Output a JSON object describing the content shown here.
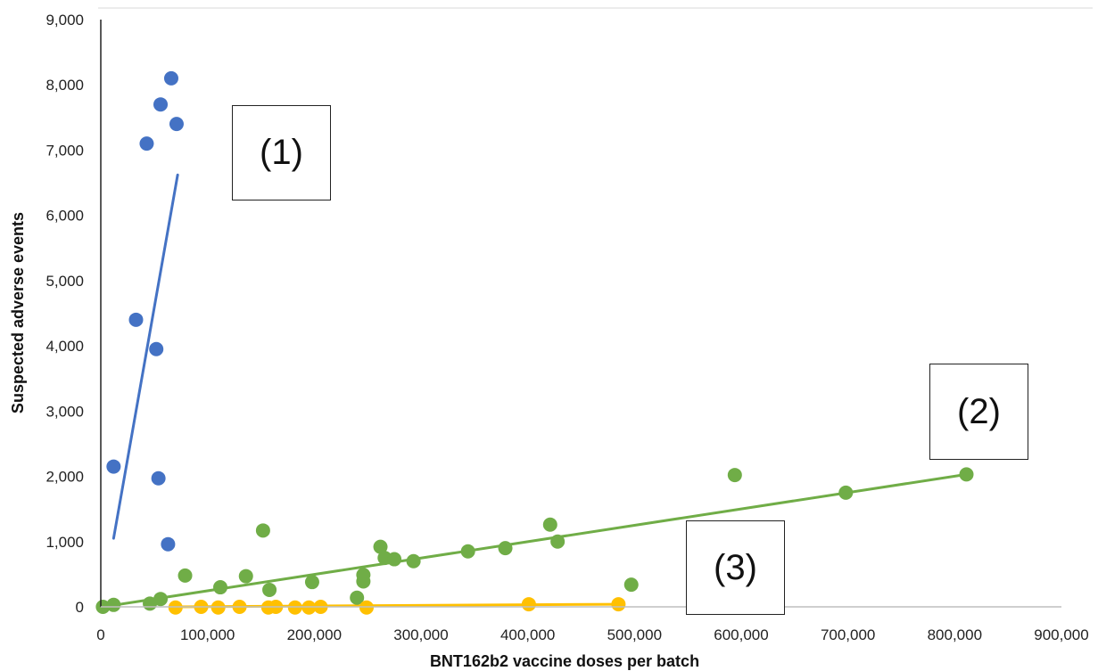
{
  "chart_data": {
    "type": "scatter",
    "title": "",
    "xlabel": "BNT162b2 vaccine doses per batch",
    "ylabel": "Suspected adverse events",
    "xlim": [
      0,
      900000
    ],
    "ylim": [
      0,
      9000
    ],
    "x_ticks": [
      "0",
      "100,000",
      "200,000",
      "300,000",
      "400,000",
      "500,000",
      "600,000",
      "700,000",
      "800,000",
      "900,000"
    ],
    "y_ticks": [
      "0",
      "1,000",
      "2,000",
      "3,000",
      "4,000",
      "5,000",
      "6,000",
      "7,000",
      "8,000",
      "9,000"
    ],
    "grid": false,
    "legend": "none",
    "series": [
      {
        "color": "#4472C4",
        "points": [
          {
            "x": 12000,
            "y": 2150
          },
          {
            "x": 33000,
            "y": 4400
          },
          {
            "x": 43000,
            "y": 7100
          },
          {
            "x": 52000,
            "y": 3950
          },
          {
            "x": 54000,
            "y": 1970
          },
          {
            "x": 56000,
            "y": 7700
          },
          {
            "x": 63000,
            "y": 960
          },
          {
            "x": 66000,
            "y": 8100
          },
          {
            "x": 71000,
            "y": 7400
          }
        ],
        "trend": [
          {
            "x": 12000,
            "y": 1050
          },
          {
            "x": 72000,
            "y": 6620
          }
        ]
      },
      {
        "color": "#70AD47",
        "points": [
          {
            "x": 2000,
            "y": 0
          },
          {
            "x": 12000,
            "y": 30
          },
          {
            "x": 46000,
            "y": 50
          },
          {
            "x": 56000,
            "y": 120
          },
          {
            "x": 79000,
            "y": 480
          },
          {
            "x": 112000,
            "y": 300
          },
          {
            "x": 136000,
            "y": 470
          },
          {
            "x": 152000,
            "y": 1170
          },
          {
            "x": 158000,
            "y": 260
          },
          {
            "x": 198000,
            "y": 380
          },
          {
            "x": 240000,
            "y": 140
          },
          {
            "x": 246000,
            "y": 390
          },
          {
            "x": 246000,
            "y": 490
          },
          {
            "x": 262000,
            "y": 920
          },
          {
            "x": 266000,
            "y": 750
          },
          {
            "x": 275000,
            "y": 730
          },
          {
            "x": 293000,
            "y": 700
          },
          {
            "x": 344000,
            "y": 850
          },
          {
            "x": 379000,
            "y": 900
          },
          {
            "x": 421000,
            "y": 1260
          },
          {
            "x": 428000,
            "y": 1000
          },
          {
            "x": 497000,
            "y": 340
          },
          {
            "x": 594000,
            "y": 2020
          },
          {
            "x": 698000,
            "y": 1750
          },
          {
            "x": 811000,
            "y": 2030
          }
        ],
        "trend": [
          {
            "x": 2000,
            "y": 0
          },
          {
            "x": 811000,
            "y": 2030
          }
        ]
      },
      {
        "color": "#FFC000",
        "points": [
          {
            "x": 70000,
            "y": -10
          },
          {
            "x": 94000,
            "y": 0
          },
          {
            "x": 110000,
            "y": -10
          },
          {
            "x": 130000,
            "y": 0
          },
          {
            "x": 157000,
            "y": -10
          },
          {
            "x": 164000,
            "y": 0
          },
          {
            "x": 182000,
            "y": -10
          },
          {
            "x": 195000,
            "y": -10
          },
          {
            "x": 206000,
            "y": 0
          },
          {
            "x": 249000,
            "y": -10
          },
          {
            "x": 401000,
            "y": 40
          },
          {
            "x": 485000,
            "y": 40
          }
        ],
        "trend": [
          {
            "x": 70000,
            "y": 0
          },
          {
            "x": 485000,
            "y": 40
          }
        ]
      }
    ],
    "annotations": [
      "(1)",
      "(2)",
      "(3)"
    ]
  },
  "colors": {
    "blue": "#4472C4",
    "green": "#70AD47",
    "yellow": "#FFC000",
    "axis": "#222222"
  }
}
